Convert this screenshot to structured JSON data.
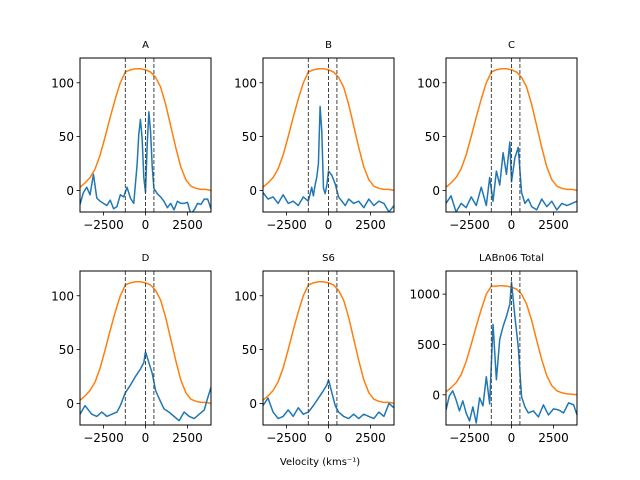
{
  "figure": {
    "xlabel": "Velocity (kms⁻¹)",
    "colors": {
      "spectrum": "#1f77b4",
      "envelope": "#ff7f0e",
      "marker": "#444444",
      "axes": "#000000"
    }
  },
  "chart_data": [
    {
      "type": "line",
      "title": "A",
      "xlim": [
        -3900,
        3900
      ],
      "ylim": [
        -20,
        123
      ],
      "xticks": [
        -2500,
        0,
        2500
      ],
      "xtick_labels": [
        "−2500",
        "0",
        "2500"
      ],
      "yticks": [
        0,
        50,
        100
      ],
      "ytick_labels": [
        "0",
        "50",
        "100"
      ],
      "vlines": [
        -1200,
        0,
        500
      ],
      "series": [
        {
          "role": "envelope",
          "x": [
            -3900,
            -3600,
            -3300,
            -3000,
            -2700,
            -2400,
            -2100,
            -1800,
            -1500,
            -1200,
            -900,
            -600,
            -300,
            0,
            300,
            600,
            900,
            1200,
            1500,
            1800,
            2100,
            2400,
            2700,
            3000,
            3300,
            3600,
            3900
          ],
          "y": [
            3,
            7,
            12,
            20,
            33,
            50,
            68,
            85,
            100,
            110,
            112,
            113,
            113,
            112,
            110,
            105,
            96,
            80,
            60,
            40,
            22,
            10,
            4,
            2,
            1,
            1,
            0
          ]
        },
        {
          "role": "spectrum",
          "x": [
            -3900,
            -3700,
            -3500,
            -3300,
            -3100,
            -2900,
            -2700,
            -2500,
            -2300,
            -2100,
            -1900,
            -1700,
            -1500,
            -1300,
            -1100,
            -900,
            -700,
            -500,
            -400,
            -300,
            -200,
            -100,
            0,
            100,
            200,
            300,
            400,
            500,
            700,
            900,
            1100,
            1300,
            1500,
            1700,
            1900,
            2100,
            2300,
            2500,
            2700,
            2900,
            3100,
            3300,
            3500,
            3700,
            3900
          ],
          "y": [
            -13,
            -2,
            3,
            -4,
            15,
            -7,
            -10,
            -12,
            -14,
            -9,
            -17,
            -15,
            -4,
            -6,
            3,
            -7,
            -12,
            24,
            52,
            66,
            48,
            12,
            -2,
            42,
            73,
            55,
            22,
            2,
            -3,
            -6,
            -10,
            -16,
            -12,
            -18,
            -10,
            -12,
            -12,
            -11,
            -22,
            -18,
            -12,
            -13,
            -8,
            -8,
            -17
          ]
        }
      ]
    },
    {
      "type": "line",
      "title": "B",
      "xlim": [
        -3900,
        3900
      ],
      "ylim": [
        -20,
        123
      ],
      "xticks": [
        -2500,
        0,
        2500
      ],
      "xtick_labels": [
        "−2500",
        "0",
        "2500"
      ],
      "yticks": [
        0,
        50,
        100
      ],
      "ytick_labels": [
        "0",
        "50",
        "100"
      ],
      "vlines": [
        -1200,
        0,
        500
      ],
      "series": [
        {
          "role": "envelope",
          "x": [
            -3900,
            -3600,
            -3300,
            -3000,
            -2700,
            -2400,
            -2100,
            -1800,
            -1500,
            -1200,
            -900,
            -600,
            -300,
            0,
            300,
            600,
            900,
            1200,
            1500,
            1800,
            2100,
            2400,
            2700,
            3000,
            3300,
            3600,
            3900
          ],
          "y": [
            3,
            7,
            12,
            20,
            33,
            50,
            68,
            85,
            100,
            110,
            112,
            113,
            113,
            112,
            110,
            105,
            96,
            80,
            60,
            40,
            22,
            10,
            4,
            2,
            1,
            1,
            0
          ]
        },
        {
          "role": "spectrum",
          "x": [
            -3900,
            -3600,
            -3300,
            -3000,
            -2700,
            -2400,
            -2100,
            -1800,
            -1500,
            -1200,
            -1000,
            -900,
            -800,
            -700,
            -600,
            -500,
            -400,
            -300,
            -200,
            -100,
            0,
            200,
            400,
            600,
            800,
            1000,
            1200,
            1500,
            1800,
            2100,
            2400,
            2700,
            3000,
            3300,
            3600,
            3900
          ],
          "y": [
            -2,
            -8,
            -6,
            -12,
            -4,
            -12,
            -10,
            -14,
            -6,
            -10,
            3,
            -5,
            5,
            12,
            25,
            78,
            55,
            2,
            -3,
            5,
            18,
            14,
            6,
            -6,
            -10,
            -14,
            -8,
            -12,
            -10,
            -16,
            -8,
            -14,
            -10,
            -12,
            -20,
            -14
          ]
        }
      ]
    },
    {
      "type": "line",
      "title": "C",
      "xlim": [
        -3900,
        3900
      ],
      "ylim": [
        -20,
        123
      ],
      "xticks": [
        -2500,
        0,
        2500
      ],
      "xtick_labels": [
        "−2500",
        "0",
        "2500"
      ],
      "yticks": [
        0,
        50,
        100
      ],
      "ytick_labels": [
        "0",
        "50",
        "100"
      ],
      "vlines": [
        -1200,
        0,
        500
      ],
      "series": [
        {
          "role": "envelope",
          "x": [
            -3900,
            -3600,
            -3300,
            -3000,
            -2700,
            -2400,
            -2100,
            -1800,
            -1500,
            -1200,
            -900,
            -600,
            -300,
            0,
            300,
            600,
            900,
            1200,
            1500,
            1800,
            2100,
            2400,
            2700,
            3000,
            3300,
            3600,
            3900
          ],
          "y": [
            3,
            7,
            12,
            20,
            33,
            50,
            68,
            85,
            100,
            110,
            112,
            113,
            113,
            112,
            110,
            105,
            96,
            80,
            60,
            40,
            22,
            10,
            4,
            2,
            1,
            1,
            0
          ]
        },
        {
          "role": "spectrum",
          "x": [
            -3900,
            -3600,
            -3300,
            -3000,
            -2700,
            -2400,
            -2100,
            -1800,
            -1500,
            -1300,
            -1100,
            -900,
            -700,
            -500,
            -300,
            -100,
            0,
            200,
            400,
            600,
            800,
            1000,
            1200,
            1500,
            1800,
            2100,
            2400,
            2700,
            3000,
            3300,
            3600,
            3900
          ],
          "y": [
            -12,
            -5,
            -20,
            -12,
            -16,
            -6,
            -14,
            3,
            -14,
            12,
            -10,
            18,
            5,
            35,
            15,
            45,
            8,
            30,
            40,
            -2,
            -12,
            -8,
            -15,
            -18,
            -8,
            -15,
            -10,
            -18,
            -12,
            -14,
            -12,
            -10
          ]
        }
      ]
    },
    {
      "type": "line",
      "title": "D",
      "xlim": [
        -3900,
        3900
      ],
      "ylim": [
        -20,
        123
      ],
      "xticks": [
        -2500,
        0,
        2500
      ],
      "xtick_labels": [
        "−2500",
        "0",
        "2500"
      ],
      "yticks": [
        0,
        50,
        100
      ],
      "ytick_labels": [
        "0",
        "50",
        "100"
      ],
      "vlines": [
        -1200,
        0,
        500
      ],
      "series": [
        {
          "role": "envelope",
          "x": [
            -3900,
            -3600,
            -3300,
            -3000,
            -2700,
            -2400,
            -2100,
            -1800,
            -1500,
            -1200,
            -900,
            -600,
            -300,
            0,
            300,
            600,
            900,
            1200,
            1500,
            1800,
            2100,
            2400,
            2700,
            3000,
            3300,
            3600,
            3900
          ],
          "y": [
            3,
            7,
            12,
            20,
            33,
            50,
            68,
            85,
            100,
            110,
            112,
            113,
            113,
            112,
            110,
            105,
            96,
            80,
            60,
            40,
            22,
            10,
            4,
            2,
            1,
            1,
            0
          ]
        },
        {
          "role": "spectrum",
          "x": [
            -3900,
            -3600,
            -3400,
            -3200,
            -2900,
            -2600,
            -2300,
            -2000,
            -1700,
            -1500,
            -1200,
            -900,
            -600,
            -300,
            -100,
            0,
            200,
            400,
            600,
            800,
            1100,
            1400,
            1700,
            2000,
            2300,
            2600,
            2900,
            3200,
            3500,
            3700,
            3900
          ],
          "y": [
            -10,
            -2,
            -6,
            -10,
            -12,
            -8,
            -12,
            -10,
            -8,
            -2,
            10,
            17,
            25,
            32,
            38,
            48,
            38,
            28,
            12,
            5,
            -5,
            -8,
            -12,
            -16,
            -8,
            -12,
            -14,
            -10,
            -6,
            5,
            15
          ]
        }
      ]
    },
    {
      "type": "line",
      "title": "S6",
      "xlim": [
        -3900,
        3900
      ],
      "ylim": [
        -20,
        123
      ],
      "xticks": [
        -2500,
        0,
        2500
      ],
      "xtick_labels": [
        "−2500",
        "0",
        "2500"
      ],
      "yticks": [
        0,
        50,
        100
      ],
      "ytick_labels": [
        "0",
        "50",
        "100"
      ],
      "vlines": [
        -1200,
        0,
        500
      ],
      "series": [
        {
          "role": "envelope",
          "x": [
            -3900,
            -3600,
            -3300,
            -3000,
            -2700,
            -2400,
            -2100,
            -1800,
            -1500,
            -1200,
            -900,
            -600,
            -300,
            0,
            300,
            600,
            900,
            1200,
            1500,
            1800,
            2100,
            2400,
            2700,
            3000,
            3300,
            3600,
            3900
          ],
          "y": [
            3,
            7,
            12,
            20,
            33,
            50,
            68,
            85,
            100,
            110,
            112,
            113,
            113,
            112,
            110,
            105,
            96,
            80,
            60,
            40,
            22,
            10,
            4,
            2,
            1,
            1,
            0
          ]
        },
        {
          "role": "spectrum",
          "x": [
            -3900,
            -3600,
            -3300,
            -3000,
            -2700,
            -2400,
            -2100,
            -1800,
            -1500,
            -1200,
            -900,
            -600,
            -300,
            -100,
            0,
            200,
            400,
            600,
            900,
            1200,
            1500,
            1800,
            2100,
            2400,
            2700,
            3000,
            3300,
            3600,
            3900
          ],
          "y": [
            -2,
            5,
            -8,
            -14,
            -12,
            -6,
            -12,
            -4,
            -10,
            -8,
            -2,
            5,
            12,
            17,
            22,
            10,
            -2,
            -8,
            -12,
            -14,
            -10,
            -14,
            -10,
            -12,
            -14,
            -8,
            -12,
            0,
            -4
          ]
        }
      ]
    },
    {
      "type": "line",
      "title": "LABn06 Total",
      "xlim": [
        -3900,
        3900
      ],
      "ylim": [
        -300,
        1230
      ],
      "xticks": [
        -2500,
        0,
        2500
      ],
      "xtick_labels": [
        "−2500",
        "0",
        "2500"
      ],
      "yticks": [
        0,
        500,
        1000
      ],
      "ytick_labels": [
        "0",
        "500",
        "1000"
      ],
      "vlines": [
        -1200,
        0,
        500
      ],
      "series": [
        {
          "role": "envelope",
          "x": [
            -3900,
            -3600,
            -3300,
            -3000,
            -2700,
            -2400,
            -2100,
            -1800,
            -1500,
            -1200,
            -900,
            -600,
            -300,
            0,
            300,
            600,
            900,
            1200,
            1500,
            1800,
            2100,
            2400,
            2700,
            3000,
            3300,
            3600,
            3900
          ],
          "y": [
            30,
            70,
            120,
            200,
            330,
            500,
            680,
            850,
            1000,
            1080,
            1080,
            1085,
            1080,
            1070,
            1050,
            1000,
            900,
            740,
            540,
            350,
            190,
            90,
            40,
            20,
            10,
            5,
            0
          ]
        },
        {
          "role": "spectrum",
          "x": [
            -3900,
            -3700,
            -3500,
            -3300,
            -3100,
            -2900,
            -2700,
            -2500,
            -2300,
            -2100,
            -1900,
            -1700,
            -1500,
            -1300,
            -1100,
            -900,
            -700,
            -500,
            -300,
            -100,
            0,
            200,
            400,
            600,
            800,
            1000,
            1300,
            1600,
            1900,
            2200,
            2500,
            2800,
            3100,
            3400,
            3700,
            3900
          ],
          "y": [
            -150,
            -10,
            40,
            -50,
            -160,
            -60,
            -180,
            -260,
            -120,
            -280,
            -30,
            -110,
            180,
            -90,
            700,
            150,
            550,
            680,
            780,
            900,
            1120,
            780,
            480,
            -20,
            -120,
            -180,
            -160,
            -220,
            -100,
            -200,
            -140,
            -150,
            -180,
            -80,
            -100,
            -200
          ]
        }
      ]
    }
  ]
}
